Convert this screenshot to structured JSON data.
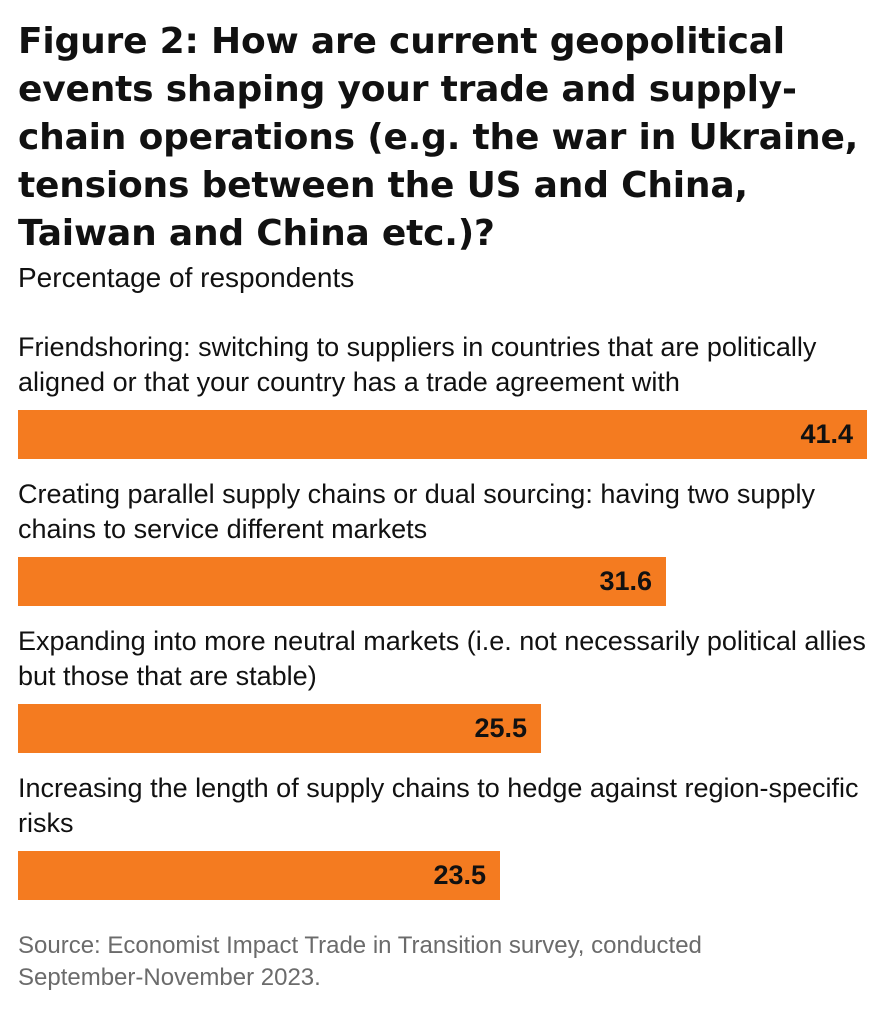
{
  "chart_data": {
    "type": "bar",
    "orientation": "horizontal",
    "title": "Figure 2: How are current geopolitical events shaping your trade and supply-chain operations (e.g. the war in Ukraine, tensions between the US and China, Taiwan and China etc.)?",
    "subtitle": "Percentage of respondents",
    "categories": [
      "Friendshoring: switching to suppliers in countries that are politically aligned or that your country has a trade agreement with",
      "Creating parallel supply chains or dual sourcing: having two supply chains to service different markets",
      "Expanding into more neutral markets (i.e. not necessarily political allies but those that are stable)",
      "Increasing the length of supply chains to hedge against region-specific risks"
    ],
    "values": [
      41.4,
      31.6,
      25.5,
      23.5
    ],
    "value_labels": [
      "41.4",
      "31.6",
      "25.5",
      "23.5"
    ],
    "xlim": [
      0,
      41.4
    ],
    "grid": false,
    "legend": "none",
    "bar_color": "#f47b20",
    "source": "Source: Economist Impact Trade in Transition survey, conducted September-November 2023."
  }
}
